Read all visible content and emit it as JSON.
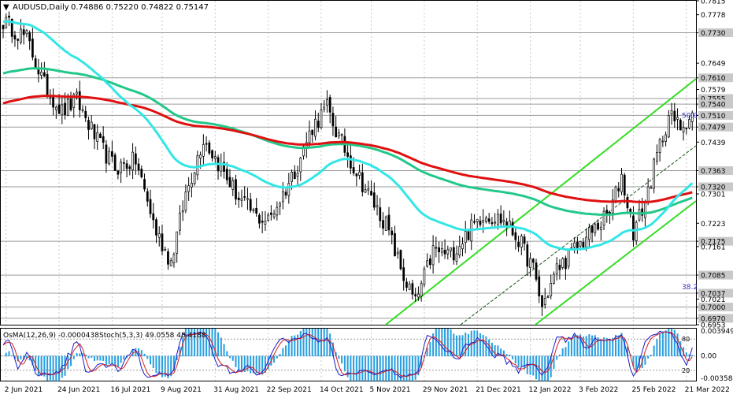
{
  "header": {
    "symbol_line": "AUDUSD,Daily",
    "ohlc": "0.74886 0.75220 0.74822 0.75147",
    "osc_label": "OsMA(12,26,9) -0.0000438",
    "stoch_label": "Stoch(5,3,3) 49.0558 48.4188"
  },
  "colors": {
    "bull": "#000000",
    "bear": "#000000",
    "ema_fast": "#33e6e6",
    "ema_mid": "#22c88a",
    "ema_slow": "#e01010",
    "channel": "#33dd22",
    "osma": "#2aa0e0",
    "stoch_main": "#1a1acc",
    "stoch_signal": "#d02020",
    "grid": "#c8c8c8"
  },
  "chart_data": [
    {
      "type": "candlestick",
      "title": "AUDUSD,Daily",
      "ylim": [
        0.6953,
        0.7815
      ],
      "x_ticks": [
        "2 Jun 2021",
        "24 Jun 2021",
        "16 Jul 2021",
        "9 Aug 2021",
        "31 Aug 2021",
        "22 Sep 2021",
        "14 Oct 2021",
        "5 Nov 2021",
        "29 Nov 2021",
        "21 Dec 2021",
        "12 Jan 2022",
        "3 Feb 2022",
        "25 Feb 2022",
        "21 Mar 2022"
      ],
      "y_ticks": [
        "0.7815",
        "0.7778",
        "0.7730",
        "0.7649",
        "0.7610",
        "0.7579",
        "0.7555",
        "0.7540",
        "0.7510",
        "0.7479",
        "0.7439",
        "0.7363",
        "0.7320",
        "0.7301",
        "0.7223",
        "0.7175",
        "0.7161",
        "0.7085",
        "0.7037",
        "0.7021",
        "0.7000",
        "0.6970",
        "0.6953"
      ],
      "key_levels": [
        0.773,
        0.761,
        0.7555,
        0.754,
        0.751,
        0.7479,
        0.7363,
        0.732,
        0.7175,
        0.7085,
        0.7037,
        0.7,
        0.697
      ],
      "fib_labels": [
        {
          "text": "38.2",
          "price": 0.7054
        },
        {
          "text": "50.0",
          "price": 0.751
        }
      ],
      "close_anchors": [
        [
          0,
          0.776
        ],
        [
          8,
          0.7715
        ],
        [
          14,
          0.759
        ],
        [
          20,
          0.752
        ],
        [
          25,
          0.755
        ],
        [
          32,
          0.744
        ],
        [
          38,
          0.737
        ],
        [
          45,
          0.739
        ],
        [
          52,
          0.72
        ],
        [
          57,
          0.712
        ],
        [
          62,
          0.73
        ],
        [
          68,
          0.745
        ],
        [
          74,
          0.737
        ],
        [
          80,
          0.729
        ],
        [
          86,
          0.724
        ],
        [
          90,
          0.723
        ],
        [
          95,
          0.73
        ],
        [
          100,
          0.738
        ],
        [
          105,
          0.748
        ],
        [
          110,
          0.753
        ],
        [
          114,
          0.745
        ],
        [
          118,
          0.739
        ],
        [
          124,
          0.73
        ],
        [
          130,
          0.722
        ],
        [
          136,
          0.708
        ],
        [
          140,
          0.701
        ],
        [
          146,
          0.715
        ],
        [
          152,
          0.714
        ],
        [
          158,
          0.72
        ],
        [
          163,
          0.725
        ],
        [
          170,
          0.723
        ],
        [
          175,
          0.718
        ],
        [
          180,
          0.71
        ],
        [
          183,
          0.7
        ],
        [
          188,
          0.71
        ],
        [
          195,
          0.716
        ],
        [
          200,
          0.72
        ],
        [
          206,
          0.725
        ],
        [
          210,
          0.735
        ],
        [
          214,
          0.72
        ],
        [
          218,
          0.728
        ],
        [
          223,
          0.743
        ],
        [
          226,
          0.751
        ],
        [
          230,
          0.748
        ],
        [
          234,
          0.7515
        ]
      ],
      "series": [
        {
          "name": "",
          "role": "ema_fast"
        },
        {
          "name": "",
          "role": "ema_mid"
        },
        {
          "name": "",
          "role": "ema_slow"
        }
      ]
    },
    {
      "type": "bar",
      "title": "OsMA(12,26,9) -0.0000438",
      "ylim": [
        -0.0035846,
        0.0039496
      ],
      "y_ticks": [
        "0.0039496",
        "0.00",
        "-0.0035846"
      ]
    },
    {
      "type": "line",
      "title": "Stoch(5,3,3) 49.0558 48.4188",
      "ylim": [
        0,
        100
      ],
      "y_ticks": [
        "80",
        "20"
      ]
    }
  ]
}
